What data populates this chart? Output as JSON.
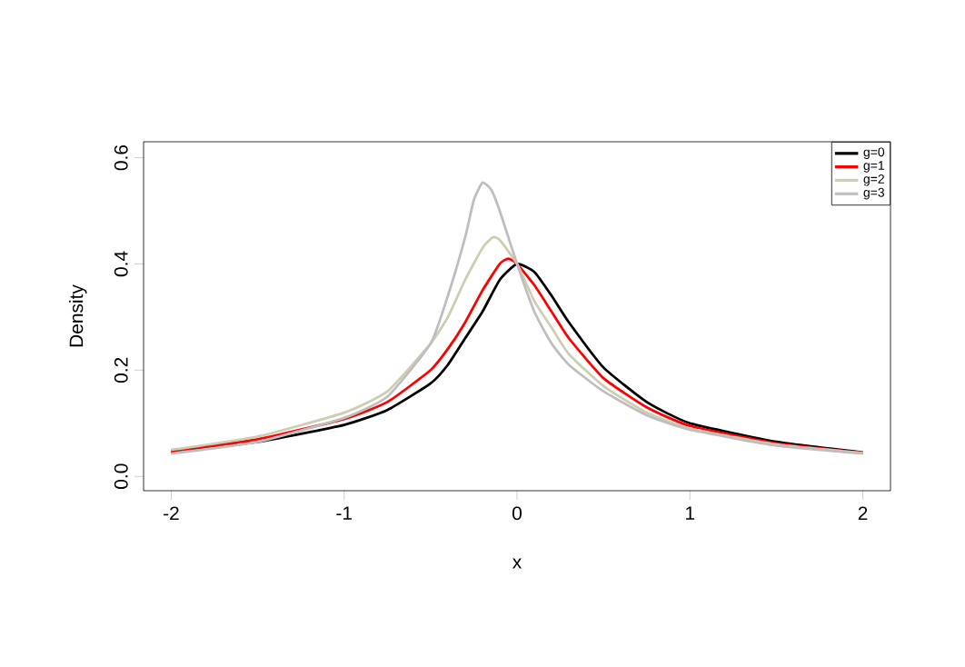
{
  "chart_data": {
    "type": "line",
    "xlabel": "x",
    "ylabel": "Density",
    "xlim": [
      -2.16,
      2.16
    ],
    "ylim": [
      -0.027,
      0.63
    ],
    "xticks": [
      -2,
      -1,
      0,
      1,
      2
    ],
    "yticks": [
      {
        "value": 0,
        "label": "0.0"
      },
      0.2,
      0.4,
      0.6
    ],
    "legend": "top right",
    "marker": "none",
    "line_style": "solid",
    "grid": false,
    "series": [
      {
        "name": "g=0",
        "color": "#000000",
        "x": [
          -2,
          -1.5,
          -1,
          -0.75,
          -0.5,
          -0.4,
          -0.3,
          -0.2,
          -0.1,
          0,
          0.1,
          0.2,
          0.3,
          0.5,
          0.75,
          1,
          1.5,
          2
        ],
        "values": [
          0.045,
          0.065,
          0.097,
          0.125,
          0.175,
          0.21,
          0.26,
          0.31,
          0.37,
          0.4,
          0.385,
          0.34,
          0.29,
          0.205,
          0.14,
          0.1,
          0.065,
          0.045
        ]
      },
      {
        "name": "g=1",
        "color": "#ff0000",
        "x": [
          -2,
          -1.5,
          -1,
          -0.75,
          -0.5,
          -0.4,
          -0.3,
          -0.2,
          -0.1,
          -0.05,
          0,
          0.1,
          0.2,
          0.3,
          0.5,
          0.75,
          1,
          1.5,
          2
        ],
        "values": [
          0.048,
          0.07,
          0.108,
          0.14,
          0.2,
          0.24,
          0.29,
          0.35,
          0.4,
          0.41,
          0.4,
          0.36,
          0.31,
          0.26,
          0.185,
          0.13,
          0.095,
          0.062,
          0.044
        ]
      },
      {
        "name": "g=2",
        "color": "#cdcdb4",
        "x": [
          -2,
          -1.5,
          -1,
          -0.75,
          -0.5,
          -0.4,
          -0.3,
          -0.2,
          -0.14,
          -0.1,
          0,
          0.1,
          0.2,
          0.3,
          0.5,
          0.75,
          1,
          1.5,
          2
        ],
        "values": [
          0.05,
          0.075,
          0.12,
          0.16,
          0.25,
          0.3,
          0.37,
          0.43,
          0.45,
          0.445,
          0.4,
          0.33,
          0.28,
          0.23,
          0.17,
          0.12,
          0.09,
          0.06,
          0.044
        ]
      },
      {
        "name": "g=3",
        "color": "#bebebe",
        "x": [
          -2,
          -1.5,
          -1,
          -0.75,
          -0.5,
          -0.4,
          -0.3,
          -0.25,
          -0.2,
          -0.15,
          -0.1,
          0,
          0.1,
          0.2,
          0.3,
          0.5,
          0.75,
          1,
          1.5,
          2
        ],
        "values": [
          0.043,
          0.065,
          0.11,
          0.15,
          0.25,
          0.34,
          0.45,
          0.52,
          0.553,
          0.54,
          0.5,
          0.4,
          0.31,
          0.25,
          0.21,
          0.16,
          0.115,
          0.088,
          0.058,
          0.043
        ]
      }
    ]
  }
}
